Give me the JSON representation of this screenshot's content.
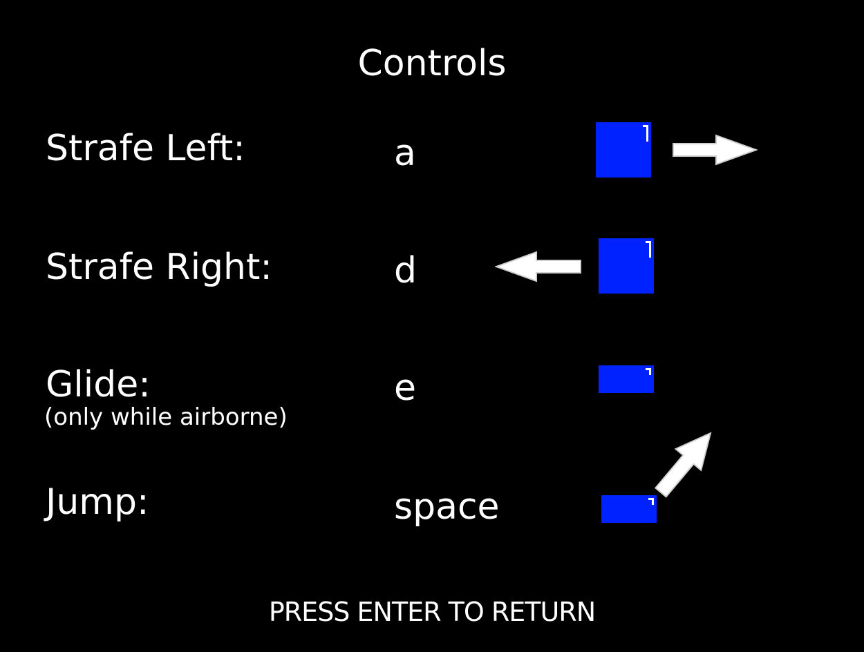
{
  "screen": {
    "title": "Controls",
    "prompt": "PRESS ENTER TO RETURN",
    "background": "#000000",
    "text_color": "#ffffff",
    "player_color": "#0022ff"
  },
  "controls": [
    {
      "label": "Strafe Left:",
      "key": "a",
      "direction_icon": "arrow-right-icon"
    },
    {
      "label": "Strafe Right:",
      "key": "d",
      "direction_icon": "arrow-left-icon"
    },
    {
      "label": "Glide:",
      "note": "(only while airborne)",
      "key": "e"
    },
    {
      "label": "Jump:",
      "key": "space",
      "direction_icon": "arrow-up-right-icon"
    }
  ]
}
